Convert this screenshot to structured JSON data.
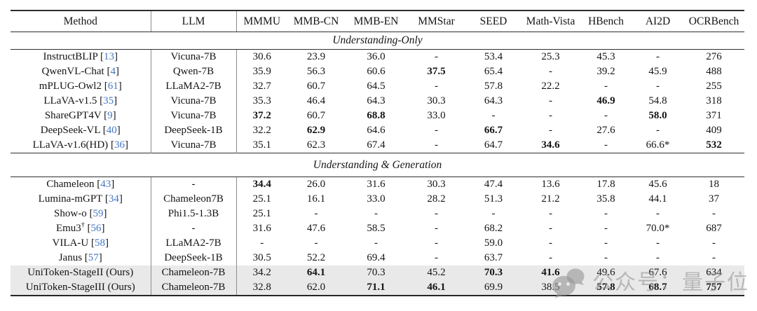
{
  "table": {
    "columns": [
      "Method",
      "LLM",
      "MMMU",
      "MMB-CN",
      "MMB-EN",
      "MMStar",
      "SEED",
      "Math-Vista",
      "HBench",
      "AI2D",
      "OCRBench"
    ],
    "sections": [
      {
        "title": "Understanding-Only",
        "rows": [
          {
            "method": "InstructBLIP",
            "sup": "",
            "ref": "13",
            "llm": "Vicuna-7B",
            "values": [
              "30.6",
              "23.9",
              "36.0",
              "-",
              "53.4",
              "25.3",
              "45.3",
              "-",
              "276"
            ],
            "bold": [],
            "highlight": false
          },
          {
            "method": "QwenVL-Chat",
            "sup": "",
            "ref": "4",
            "llm": "Qwen-7B",
            "values": [
              "35.9",
              "56.3",
              "60.6",
              "37.5",
              "65.4",
              "-",
              "39.2",
              "45.9",
              "488"
            ],
            "bold": [
              3
            ],
            "highlight": false
          },
          {
            "method": "mPLUG-Owl2",
            "sup": "",
            "ref": "61",
            "llm": "LLaMA2-7B",
            "values": [
              "32.7",
              "60.7",
              "64.5",
              "-",
              "57.8",
              "22.2",
              "-",
              "-",
              "255"
            ],
            "bold": [],
            "highlight": false
          },
          {
            "method": "LLaVA-v1.5",
            "sup": "",
            "ref": "35",
            "llm": "Vicuna-7B",
            "values": [
              "35.3",
              "46.4",
              "64.3",
              "30.3",
              "64.3",
              "-",
              "46.9",
              "54.8",
              "318"
            ],
            "bold": [
              6
            ],
            "highlight": false
          },
          {
            "method": "ShareGPT4V",
            "sup": "",
            "ref": "9",
            "llm": "Vicuna-7B",
            "values": [
              "37.2",
              "60.7",
              "68.8",
              "33.0",
              "-",
              "-",
              "-",
              "58.0",
              "371"
            ],
            "bold": [
              0,
              2,
              7
            ],
            "highlight": false
          },
          {
            "method": "DeepSeek-VL",
            "sup": "",
            "ref": "40",
            "llm": "DeepSeek-1B",
            "values": [
              "32.2",
              "62.9",
              "64.6",
              "-",
              "66.7",
              "-",
              "27.6",
              "-",
              "409"
            ],
            "bold": [
              1,
              4
            ],
            "highlight": false
          },
          {
            "method": "LLaVA-v1.6(HD)",
            "sup": "",
            "ref": "36",
            "llm": "Vicuna-7B",
            "values": [
              "35.1",
              "62.3",
              "67.4",
              "-",
              "64.7",
              "34.6",
              "-",
              "66.6*",
              "532"
            ],
            "bold": [
              5,
              8
            ],
            "highlight": false
          }
        ]
      },
      {
        "title": "Understanding & Generation",
        "rows": [
          {
            "method": "Chameleon",
            "sup": "",
            "ref": "43",
            "llm": "-",
            "values": [
              "34.4",
              "26.0",
              "31.6",
              "30.3",
              "47.4",
              "13.6",
              "17.8",
              "45.6",
              "18"
            ],
            "bold": [
              0
            ],
            "highlight": false
          },
          {
            "method": "Lumina-mGPT",
            "sup": "",
            "ref": "34",
            "llm": "Chameleon7B",
            "values": [
              "25.1",
              "16.1",
              "33.0",
              "28.2",
              "51.3",
              "21.2",
              "35.8",
              "44.1",
              "37"
            ],
            "bold": [],
            "highlight": false
          },
          {
            "method": "Show-o",
            "sup": "",
            "ref": "59",
            "llm": "Phi1.5-1.3B",
            "values": [
              "25.1",
              "-",
              "-",
              "-",
              "-",
              "-",
              "-",
              "-",
              "-"
            ],
            "bold": [],
            "highlight": false
          },
          {
            "method": "Emu3",
            "sup": "†",
            "ref": "56",
            "llm": "-",
            "values": [
              "31.6",
              "47.6",
              "58.5",
              "-",
              "68.2",
              "-",
              "-",
              "70.0*",
              "687"
            ],
            "bold": [],
            "highlight": false
          },
          {
            "method": "VILA-U",
            "sup": "",
            "ref": "58",
            "llm": "LLaMA2-7B",
            "values": [
              "-",
              "-",
              "-",
              "-",
              "59.0",
              "-",
              "-",
              "-",
              "-"
            ],
            "bold": [],
            "highlight": false
          },
          {
            "method": "Janus",
            "sup": "",
            "ref": "57",
            "llm": "DeepSeek-1B",
            "values": [
              "30.5",
              "52.2",
              "69.4",
              "-",
              "63.7",
              "-",
              "-",
              "-",
              "-"
            ],
            "bold": [],
            "highlight": false
          },
          {
            "method": "UniToken-StageII (Ours)",
            "sup": "",
            "ref": "",
            "llm": "Chameleon-7B",
            "values": [
              "34.2",
              "64.1",
              "70.3",
              "45.2",
              "70.3",
              "41.6",
              "49.6",
              "67.6",
              "634"
            ],
            "bold": [
              1,
              4,
              5
            ],
            "highlight": true
          },
          {
            "method": "UniToken-StageIII (Ours)",
            "sup": "",
            "ref": "",
            "llm": "Chameleon-7B",
            "values": [
              "32.8",
              "62.0",
              "71.1",
              "46.1",
              "69.9",
              "38.5",
              "57.8",
              "68.7",
              "757"
            ],
            "bold": [
              2,
              3,
              6,
              7,
              8
            ],
            "highlight": true
          }
        ]
      }
    ]
  },
  "watermark": {
    "icon": "wechat-icon",
    "text": "公众号：量子位"
  },
  "colors": {
    "citation_blue": "#4277c4",
    "highlight_row_bg": "#e9e9e9",
    "watermark_gray": "rgba(150,150,150,0.6)",
    "rule_dark": "#2e2e2e",
    "rule_gray": "#8c8c8c"
  }
}
